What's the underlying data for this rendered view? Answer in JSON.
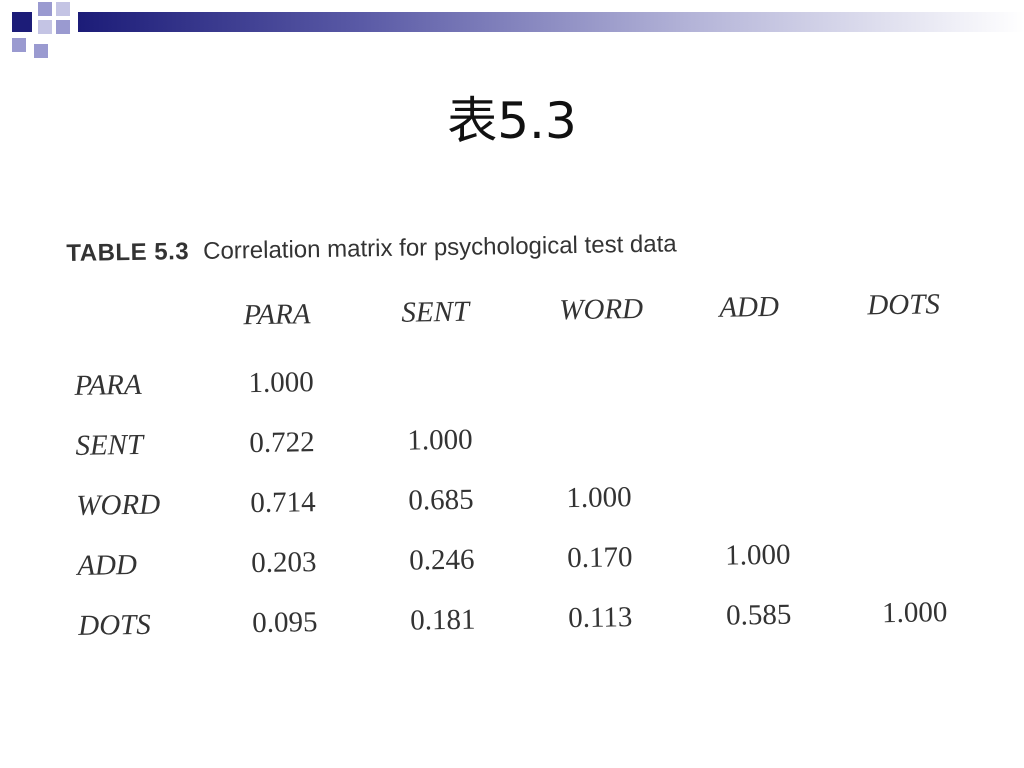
{
  "slide_title": "表5.3",
  "table": {
    "caption_label": "TABLE 5.3",
    "caption_text": "Correlation matrix for psychological test data",
    "columns": [
      "PARA",
      "SENT",
      "WORD",
      "ADD",
      "DOTS"
    ],
    "rows": [
      {
        "label": "PARA",
        "cells": [
          "1.000",
          "",
          "",
          "",
          ""
        ]
      },
      {
        "label": "SENT",
        "cells": [
          "0.722",
          "1.000",
          "",
          "",
          ""
        ]
      },
      {
        "label": "WORD",
        "cells": [
          "0.714",
          "0.685",
          "1.000",
          "",
          ""
        ]
      },
      {
        "label": "ADD",
        "cells": [
          "0.203",
          "0.246",
          "0.170",
          "1.000",
          ""
        ]
      },
      {
        "label": "DOTS",
        "cells": [
          "0.095",
          "0.181",
          "0.113",
          "0.585",
          "1.000"
        ]
      }
    ]
  },
  "colors": {
    "bar_dark": "#1c1c78",
    "square_dark": "#1c1c78",
    "square_light": "#9a9ad0"
  }
}
